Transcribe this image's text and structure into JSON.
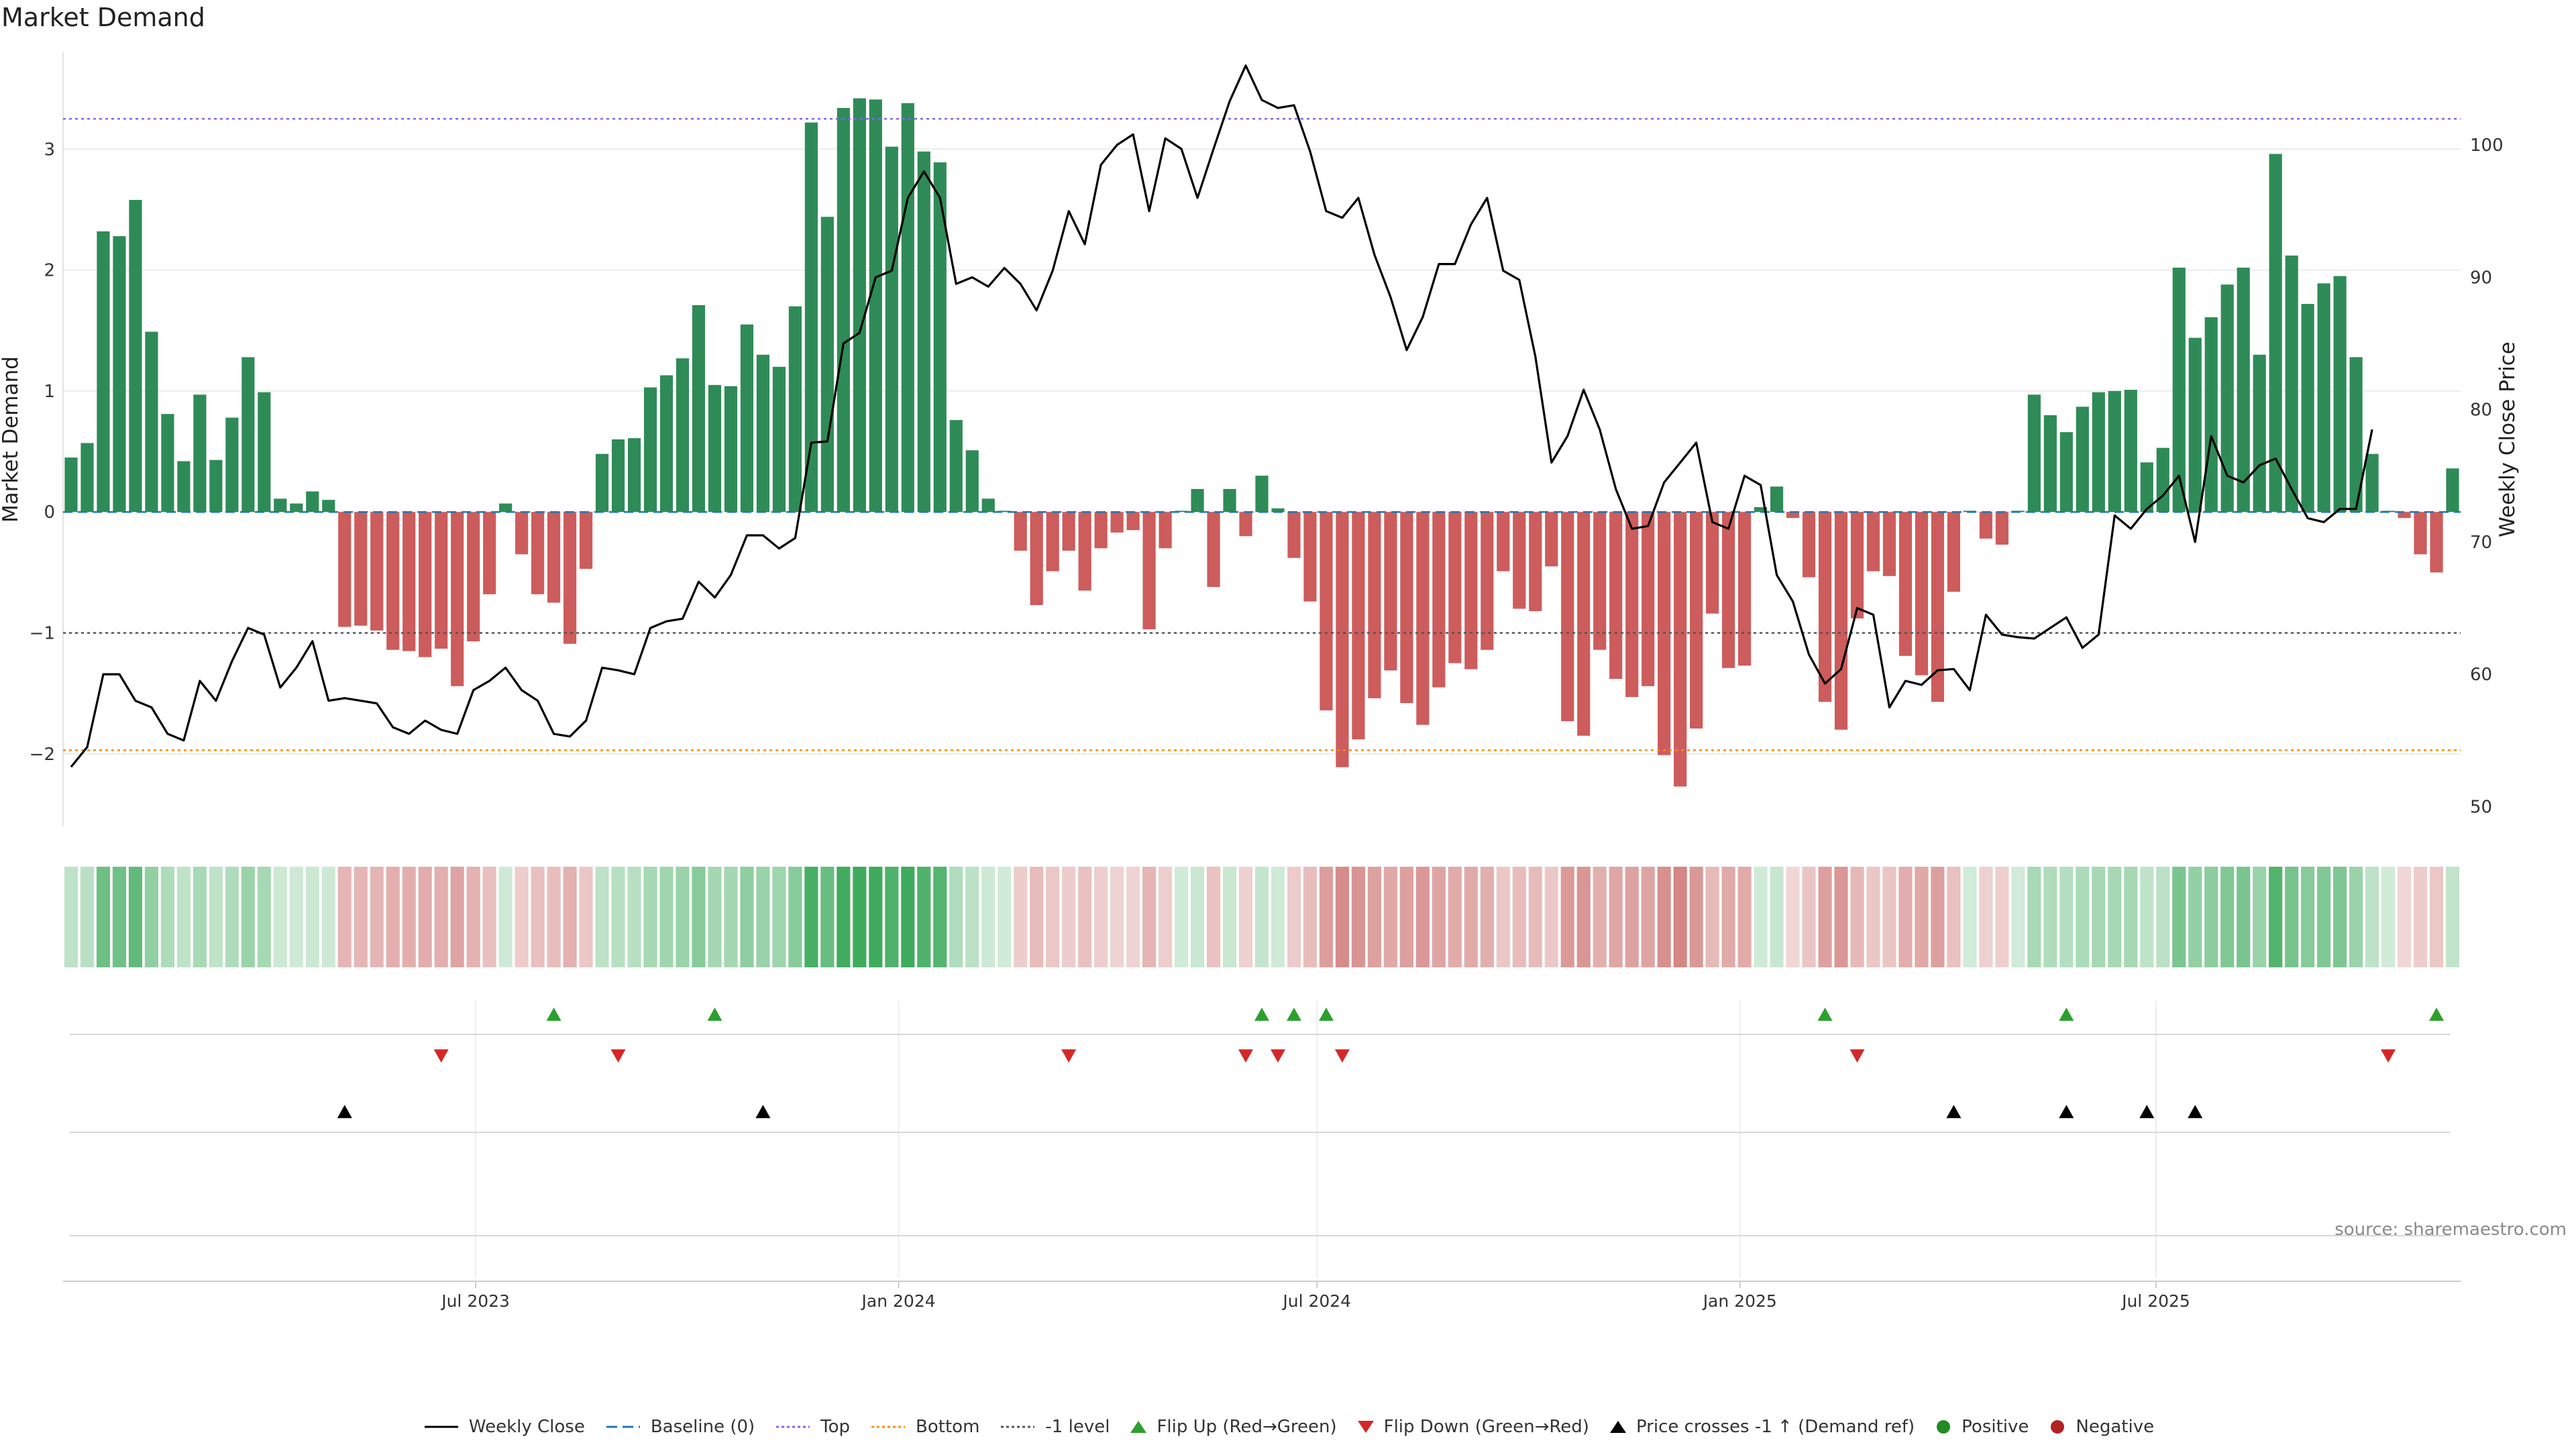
{
  "title": "Market Demand",
  "source": "source: sharemaestro.com",
  "chart_data": {
    "type": "bar",
    "start_date": "2023-01-06",
    "frequency": "weekly",
    "left_axis": {
      "label": "Market Demand",
      "range": [
        -2.6,
        3.8
      ],
      "ticks": [
        -2,
        -1,
        0,
        1,
        2,
        3
      ],
      "tick_labels": [
        "−2",
        "−1",
        "0",
        "1",
        "2",
        "3"
      ]
    },
    "right_axis": {
      "label": "Weekly Close Price",
      "range": [
        48.5,
        107
      ],
      "ticks": [
        50,
        60,
        70,
        80,
        90,
        100
      ],
      "tick_labels": [
        "50",
        "60",
        "70",
        "80",
        "90",
        "100"
      ]
    },
    "x_axis": {
      "ticks": [
        "2023-07-01",
        "2024-01-01",
        "2024-07-01",
        "2025-01-01",
        "2025-07-01"
      ],
      "tick_labels": [
        "Jul 2023",
        "Jan 2024",
        "Jul 2024",
        "Jan 2025",
        "Jul 2025"
      ]
    },
    "reference_lines": {
      "top": 3.25,
      "bottom": -1.97,
      "minus_one": -1,
      "baseline": 0
    },
    "colors": {
      "positive": "#2e8b57",
      "negative": "#cd5c5c",
      "price": "#000000",
      "top": "#7b68ee",
      "bottom": "#ff8c00",
      "minus_one": "#555555",
      "baseline": "#1f77b4",
      "flip_up": "#2ca02c",
      "flip_down": "#d62728",
      "cross": "#000000"
    },
    "demand": [
      0.45,
      0.57,
      2.32,
      2.28,
      2.58,
      1.49,
      0.81,
      0.42,
      0.97,
      0.43,
      0.78,
      1.28,
      0.99,
      0.11,
      0.07,
      0.17,
      0.1,
      -0.95,
      -0.94,
      -0.98,
      -1.14,
      -1.15,
      -1.2,
      -1.13,
      -1.44,
      -1.07,
      -0.68,
      0.07,
      -0.35,
      -0.68,
      -0.75,
      -1.09,
      -0.47,
      0.48,
      0.6,
      0.61,
      1.03,
      1.13,
      1.27,
      1.71,
      1.05,
      1.04,
      1.55,
      1.3,
      1.2,
      1.7,
      3.22,
      2.44,
      3.34,
      3.42,
      3.41,
      3.02,
      3.38,
      2.98,
      2.89,
      0.76,
      0.51,
      0.11,
      0.01,
      -0.32,
      -0.77,
      -0.49,
      -0.32,
      -0.65,
      -0.3,
      -0.17,
      -0.15,
      -0.97,
      -0.3,
      0.01,
      0.19,
      -0.62,
      0.19,
      -0.2,
      0.3,
      0.03,
      -0.38,
      -0.74,
      -1.64,
      -2.11,
      -1.88,
      -1.54,
      -1.31,
      -1.58,
      -1.76,
      -1.45,
      -1.25,
      -1.3,
      -1.14,
      -0.49,
      -0.8,
      -0.82,
      -0.45,
      -1.73,
      -1.85,
      -1.14,
      -1.38,
      -1.53,
      -1.44,
      -2.01,
      -2.27,
      -1.79,
      -0.84,
      -1.29,
      -1.27,
      0.04,
      0.21,
      -0.05,
      -0.54,
      -1.57,
      -1.8,
      -0.88,
      -0.49,
      -0.53,
      -1.19,
      -1.35,
      -1.57,
      -0.66,
      0.01,
      -0.22,
      -0.27,
      0.01,
      0.97,
      0.8,
      0.66,
      0.87,
      0.99,
      1.0,
      1.01,
      0.41,
      0.53,
      2.02,
      1.44,
      1.61,
      1.88,
      2.02,
      1.3,
      2.96,
      2.12,
      1.72,
      1.89,
      1.95,
      1.28,
      0.48,
      0.01,
      -0.05,
      -0.35,
      -0.5,
      0.36
    ],
    "price": [
      53.0,
      54.5,
      60.0,
      60.0,
      58.0,
      57.5,
      55.5,
      55.0,
      59.5,
      58.0,
      61.0,
      63.5,
      63.0,
      59.0,
      60.5,
      62.5,
      58.0,
      58.2,
      58.0,
      57.8,
      56.0,
      55.5,
      56.5,
      55.8,
      55.5,
      58.8,
      59.5,
      60.5,
      58.8,
      58.0,
      55.5,
      55.3,
      56.5,
      60.5,
      60.3,
      60.0,
      63.5,
      64.0,
      64.2,
      67.0,
      65.8,
      67.5,
      70.5,
      70.5,
      69.5,
      70.3,
      77.5,
      77.6,
      85.0,
      85.8,
      90.0,
      90.5,
      96.0,
      98.0,
      96.0,
      89.5,
      90.0,
      89.3,
      90.7,
      89.5,
      87.5,
      90.5,
      95.0,
      92.5,
      98.5,
      100.0,
      100.8,
      95.0,
      100.5,
      99.7,
      96.0,
      99.7,
      103.3,
      106.0,
      103.4,
      102.8,
      103.0,
      99.5,
      95.0,
      94.5,
      96.0,
      91.7,
      88.5,
      84.5,
      87.0,
      91.0,
      91.0,
      94.0,
      96.0,
      90.5,
      89.8,
      84.0,
      76.0,
      78.0,
      81.5,
      78.5,
      74.0,
      71.0,
      71.2,
      74.5,
      76.0,
      77.5,
      71.5,
      71.0,
      75.0,
      74.3,
      67.5,
      65.5,
      61.5,
      59.3,
      60.4,
      65.0,
      64.5,
      57.5,
      59.5,
      59.2,
      60.3,
      60.4,
      58.8,
      64.5,
      63.0,
      62.8,
      62.7,
      63.5,
      64.3,
      62.0,
      63.0,
      72.0,
      71.0,
      72.5,
      73.5,
      75.0,
      70.0,
      78.0,
      75.0,
      74.5,
      75.8,
      76.3,
      74.0,
      71.8,
      71.5,
      72.5,
      72.5,
      78.5
    ],
    "flip_up": [
      "2023-08-04",
      "2023-10-13",
      "2024-06-07",
      "2024-06-21",
      "2024-07-05",
      "2025-02-07",
      "2025-05-23",
      "2025-10-31"
    ],
    "flip_down": [
      "2023-06-16",
      "2023-09-01",
      "2024-03-15",
      "2024-05-31",
      "2024-06-14",
      "2024-07-12",
      "2025-02-21",
      "2025-10-10"
    ],
    "price_crosses_up": [
      "2023-05-05",
      "2023-11-03",
      "2025-04-04",
      "2025-05-23",
      "2025-06-27",
      "2025-07-18"
    ],
    "legend": [
      "Weekly Close",
      "Baseline (0)",
      "Top",
      "Bottom",
      "-1 level",
      "Flip Up (Red→Green)",
      "Flip Down (Green→Red)",
      "Price crosses -1 ↑ (Demand ref)",
      "Positive",
      "Negative"
    ],
    "legend_position": "bottom-center"
  }
}
